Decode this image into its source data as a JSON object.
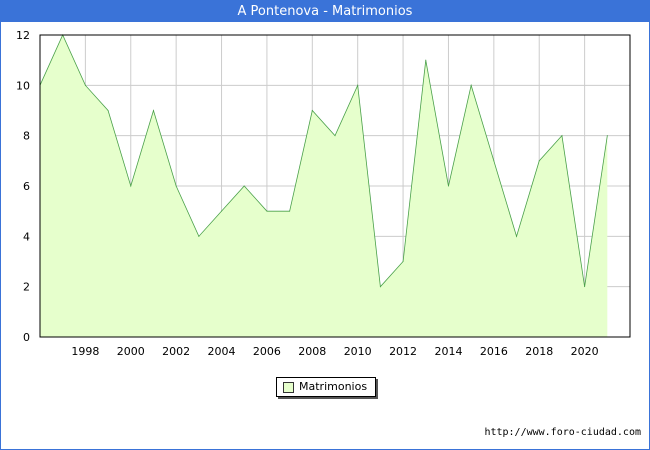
{
  "window": {
    "title": "A Pontenova - Matrimonios"
  },
  "chart_data": {
    "type": "area",
    "x": [
      1996,
      1997,
      1998,
      1999,
      2000,
      2001,
      2002,
      2003,
      2004,
      2005,
      2006,
      2007,
      2008,
      2009,
      2010,
      2011,
      2012,
      2013,
      2014,
      2015,
      2016,
      2017,
      2018,
      2019,
      2020,
      2021
    ],
    "series": [
      {
        "name": "Matrimonios",
        "values": [
          10,
          12,
          10,
          9,
          6,
          9,
          6,
          4,
          5,
          6,
          5,
          5,
          9,
          8,
          10,
          2,
          3,
          11,
          6,
          10,
          7,
          4,
          7,
          8,
          2,
          8
        ]
      }
    ],
    "xticks": [
      "1998",
      "2000",
      "2002",
      "2004",
      "2006",
      "2008",
      "2010",
      "2012",
      "2014",
      "2016",
      "2018",
      "2020"
    ],
    "yticks": [
      "0",
      "2",
      "4",
      "6",
      "8",
      "10",
      "12"
    ],
    "xlim": [
      1996,
      2022
    ],
    "ylim": [
      0,
      12
    ],
    "grid": true,
    "legend": "bottom-center",
    "colors": {
      "fill": "#e6ffcc",
      "line": "#4aa04a",
      "grid": "#cccccc",
      "frame": "#3a73d8"
    }
  },
  "legend": {
    "label": "Matrimonios"
  },
  "footer": {
    "source": "http://www.foro-ciudad.com"
  }
}
